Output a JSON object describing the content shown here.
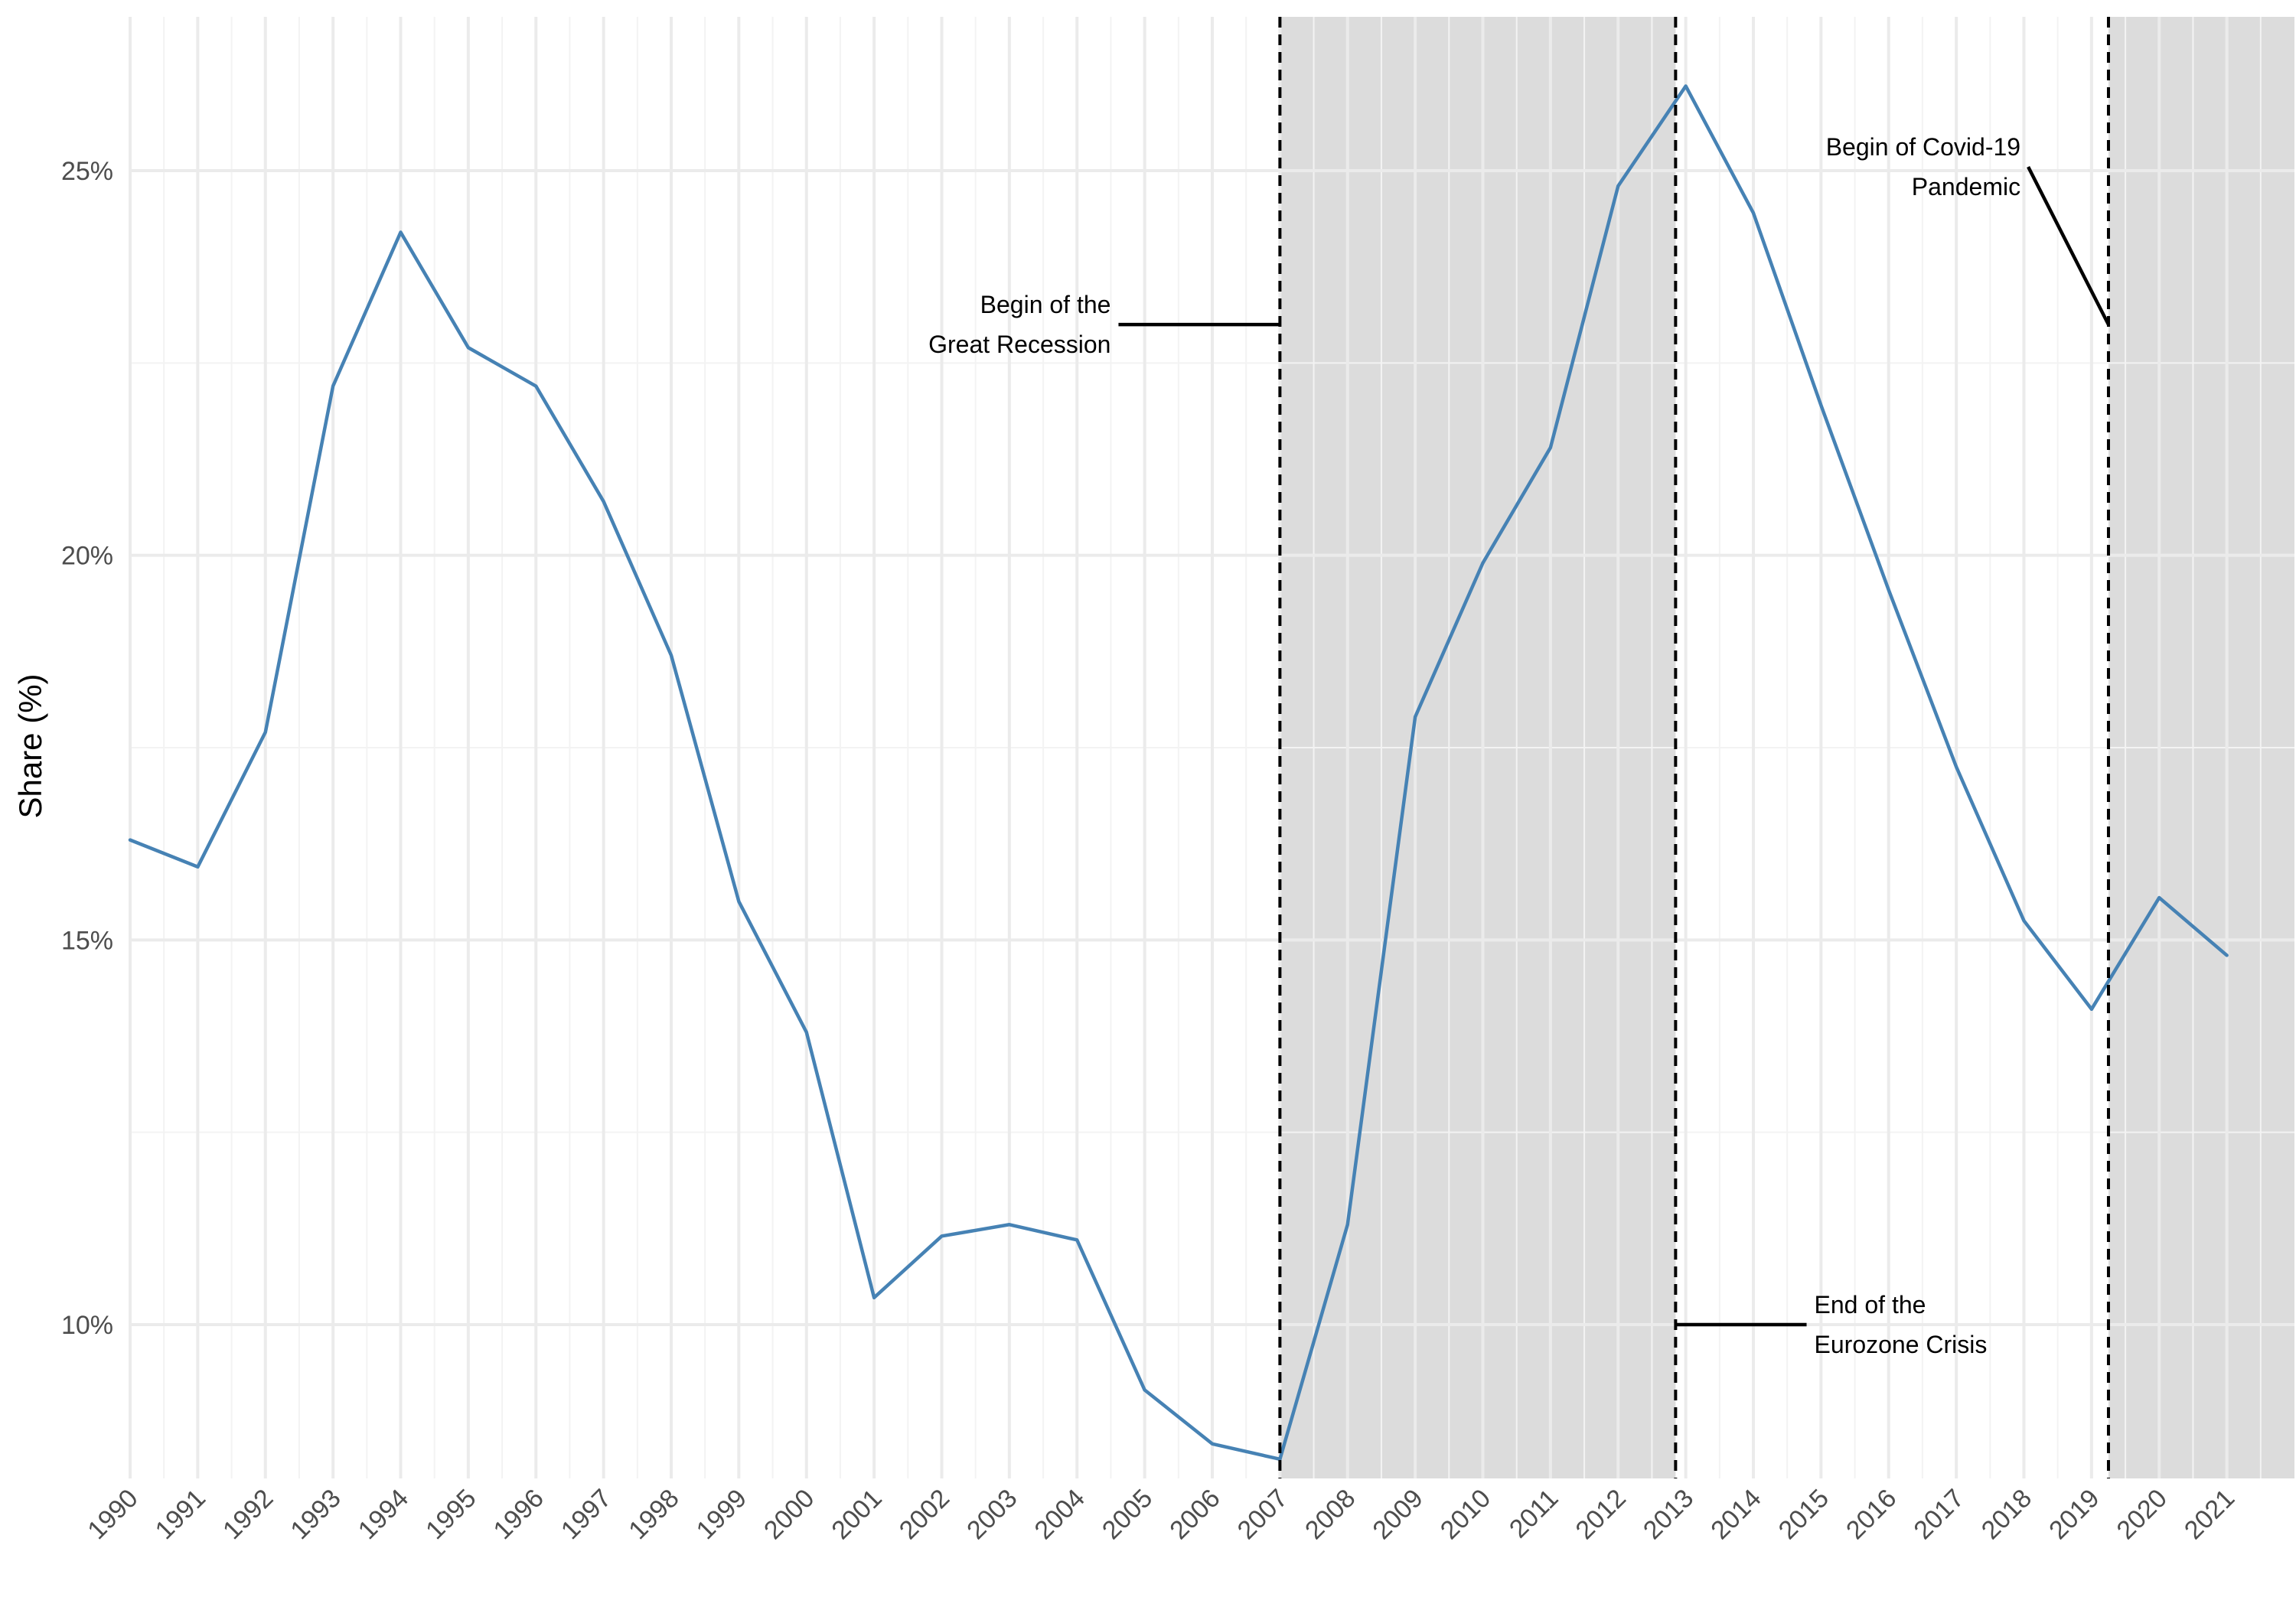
{
  "chart_data": {
    "type": "line",
    "title": "",
    "xlabel": "",
    "ylabel": "Share (%)",
    "x": [
      1990,
      1991,
      1992,
      1993,
      1994,
      1995,
      1996,
      1997,
      1998,
      1999,
      2000,
      2001,
      2002,
      2003,
      2004,
      2005,
      2006,
      2007,
      2008,
      2009,
      2010,
      2011,
      2012,
      2013,
      2014,
      2015,
      2016,
      2017,
      2018,
      2019,
      2020,
      2021
    ],
    "series": [
      {
        "values": [
          16.3,
          15.95,
          17.7,
          22.2,
          24.2,
          22.7,
          22.2,
          20.7,
          18.7,
          15.5,
          13.8,
          10.35,
          11.15,
          11.3,
          11.1,
          9.15,
          8.45,
          8.25,
          11.3,
          17.9,
          19.9,
          21.4,
          24.8,
          26.1,
          24.45,
          21.95,
          19.55,
          17.25,
          15.25,
          14.1,
          15.55,
          14.8
        ]
      }
    ],
    "ylim": [
      8.0,
      27.0
    ],
    "xlim": [
      1990,
      2022
    ],
    "y_ticks": [
      10,
      15,
      20,
      25
    ],
    "y_tick_labels": [
      "10%",
      "15%",
      "20%",
      "25%"
    ],
    "x_tick_labels": [
      "1990",
      "1991",
      "1992",
      "1993",
      "1994",
      "1995",
      "1996",
      "1997",
      "1998",
      "1999",
      "2000",
      "2001",
      "2002",
      "2003",
      "2004",
      "2005",
      "2006",
      "2007",
      "2008",
      "2009",
      "2010",
      "2011",
      "2012",
      "2013",
      "2014",
      "2015",
      "2016",
      "2017",
      "2018",
      "2019",
      "2020",
      "2021"
    ],
    "shaded_periods": [
      [
        2007.0,
        2012.85
      ],
      [
        2019.25,
        2022.0
      ]
    ],
    "vlines": [
      2007.0,
      2012.85,
      2019.25
    ],
    "annotations": [
      {
        "lines": [
          "Begin of the",
          "Great Recession"
        ],
        "at_x": 2007.0,
        "at_y": 23.0,
        "text_x": 2004.5,
        "anchor": "end"
      },
      {
        "lines": [
          "End of the",
          "Eurozone Crisis"
        ],
        "at_x": 2012.85,
        "at_y": 10.0,
        "text_x": 2014.9,
        "anchor": "start"
      },
      {
        "lines": [
          "Begin of Covid-19",
          "Pandemic"
        ],
        "at_x": 2019.25,
        "at_y": 23.0,
        "text_x": 2017.95,
        "text_y": 25.05,
        "anchor": "end"
      }
    ],
    "grid": true,
    "legend": "none",
    "colors": {
      "line": "#4682B4",
      "shade": "#DCDCDC",
      "grid_major": "#EBEBEB",
      "grid_minor": "#F3F3F3",
      "text": "#4d4d4d"
    }
  }
}
